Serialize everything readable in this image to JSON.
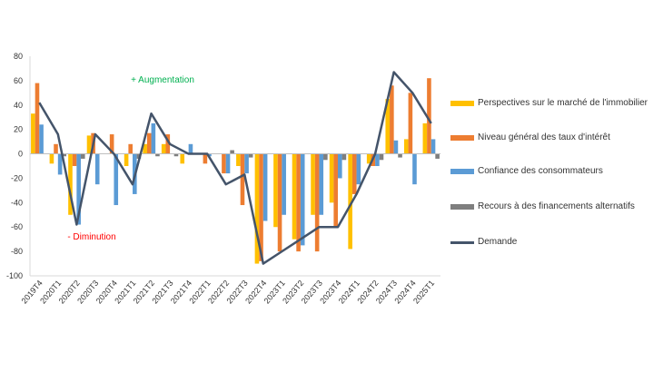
{
  "chart_data": {
    "type": "bar",
    "categories": [
      "2019T4",
      "2020T1",
      "2020T2",
      "2020T3",
      "2020T4",
      "2021T1",
      "2021T2",
      "2021T3",
      "2021T4",
      "2022T1",
      "2022T2",
      "2022T3",
      "2022T4",
      "2023T1",
      "2023T2",
      "2023T3",
      "2023T4",
      "2024T1",
      "2024T2",
      "2024T3",
      "2024T4",
      "2025T1"
    ],
    "series": [
      {
        "name": "Perspectives sur le marché de l'immobilier",
        "color": "#FFC000",
        "values": [
          33,
          -8,
          -50,
          15,
          0,
          -10,
          8,
          8,
          -8,
          0,
          0,
          -10,
          -90,
          -60,
          -70,
          -50,
          -40,
          -78,
          -8,
          45,
          12,
          25
        ]
      },
      {
        "name": "Niveau général des taux d'intérêt",
        "color": "#ED7D31",
        "values": [
          58,
          8,
          -10,
          17,
          16,
          8,
          17,
          16,
          0,
          -8,
          -16,
          -42,
          -88,
          -80,
          -80,
          -80,
          -60,
          -33,
          -10,
          56,
          50,
          62
        ]
      },
      {
        "name": "Confiance des consommateurs",
        "color": "#5B9BD5",
        "values": [
          24,
          -17,
          -58,
          -25,
          -42,
          -33,
          25,
          0,
          8,
          -2,
          -16,
          -16,
          -55,
          -50,
          -75,
          -50,
          -20,
          -25,
          -10,
          11,
          -25,
          12
        ]
      },
      {
        "name": "Recours à des financements alternatifs",
        "color": "#7F7F7F",
        "values": [
          0,
          -2,
          -4,
          0,
          0,
          -4,
          -2,
          -2,
          0,
          0,
          3,
          -3,
          0,
          0,
          0,
          -5,
          -5,
          0,
          -5,
          -3,
          0,
          -4
        ]
      }
    ],
    "line": {
      "name": "Demande",
      "color": "#44546A",
      "values": [
        42,
        16,
        -58,
        16,
        0,
        -25,
        33,
        8,
        0,
        0,
        -25,
        -17,
        -90,
        -80,
        -70,
        -60,
        -60,
        -33,
        0,
        67,
        50,
        25
      ]
    },
    "ylim": [
      -100,
      80
    ],
    "yticks": [
      80,
      60,
      40,
      20,
      0,
      -20,
      -40,
      -60,
      -80,
      -100
    ],
    "annotations": {
      "up": "+ Augmentation",
      "down": "- Diminution",
      "up_color": "#00B050",
      "down_color": "#FF0000"
    },
    "legend_position": "right",
    "grid": false
  }
}
